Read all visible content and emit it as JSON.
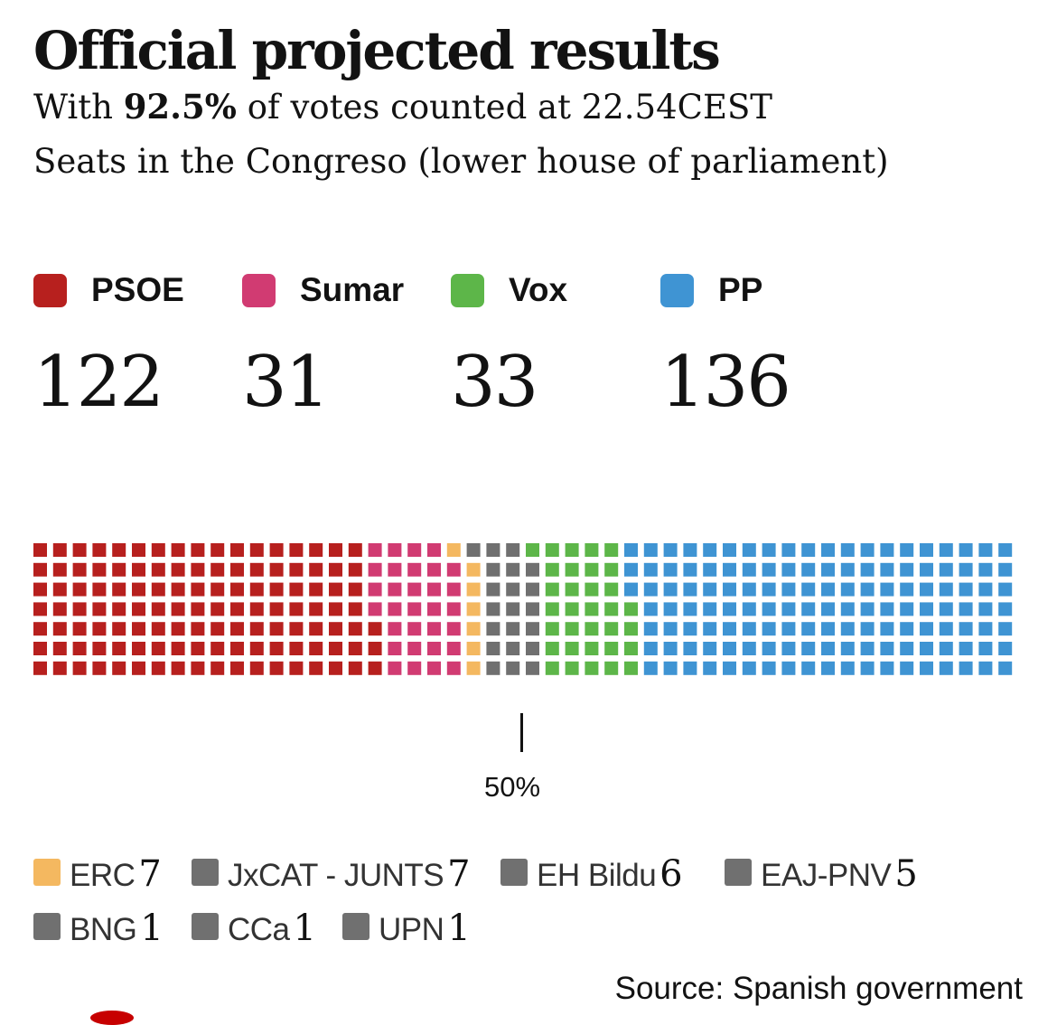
{
  "header": {
    "title": "Official projected results",
    "subtitle_pre": "With ",
    "subtitle_bold": "92.5%",
    "subtitle_post": " of votes counted at 22.54CEST",
    "subtitle2": "Seats in the Congreso (lower house of parliament)"
  },
  "main_parties": [
    {
      "name": "PSOE",
      "seats": "122",
      "color": "#b7201e"
    },
    {
      "name": "Sumar",
      "seats": "31",
      "color": "#d13b72"
    },
    {
      "name": "Vox",
      "seats": "33",
      "color": "#5db649"
    },
    {
      "name": "PP",
      "seats": "136",
      "color": "#3f94d3"
    }
  ],
  "majority_label": "50%",
  "legend": [
    {
      "name": "ERC",
      "value": "7",
      "color": "#f4b860"
    },
    {
      "name": "JxCAT - JUNTS",
      "value": "7",
      "color": "#707070"
    },
    {
      "name": "EH Bildu",
      "value": "6",
      "color": "#707070"
    },
    {
      "name": "EAJ-PNV",
      "value": "5",
      "color": "#707070"
    },
    {
      "name": "BNG",
      "value": "1",
      "color": "#707070"
    },
    {
      "name": "CCa",
      "value": "1",
      "color": "#707070"
    },
    {
      "name": "UPN",
      "value": "1",
      "color": "#707070"
    }
  ],
  "source": "Source: Spanish government",
  "chart_data": {
    "type": "waffle",
    "total_seats": 350,
    "majority_pct": 50,
    "rows": 7,
    "series": [
      {
        "name": "PSOE",
        "value": 122,
        "color": "#b7201e"
      },
      {
        "name": "Sumar",
        "value": 31,
        "color": "#d13b72"
      },
      {
        "name": "ERC",
        "value": 7,
        "color": "#f4b860"
      },
      {
        "name": "JxCAT - JUNTS",
        "value": 7,
        "color": "#707070"
      },
      {
        "name": "EH Bildu",
        "value": 6,
        "color": "#707070"
      },
      {
        "name": "EAJ-PNV",
        "value": 5,
        "color": "#707070"
      },
      {
        "name": "BNG",
        "value": 1,
        "color": "#707070"
      },
      {
        "name": "CCa",
        "value": 1,
        "color": "#707070"
      },
      {
        "name": "UPN",
        "value": 1,
        "color": "#707070"
      },
      {
        "name": "Vox",
        "value": 33,
        "color": "#5db649"
      },
      {
        "name": "PP",
        "value": 136,
        "color": "#3f94d3"
      }
    ]
  }
}
